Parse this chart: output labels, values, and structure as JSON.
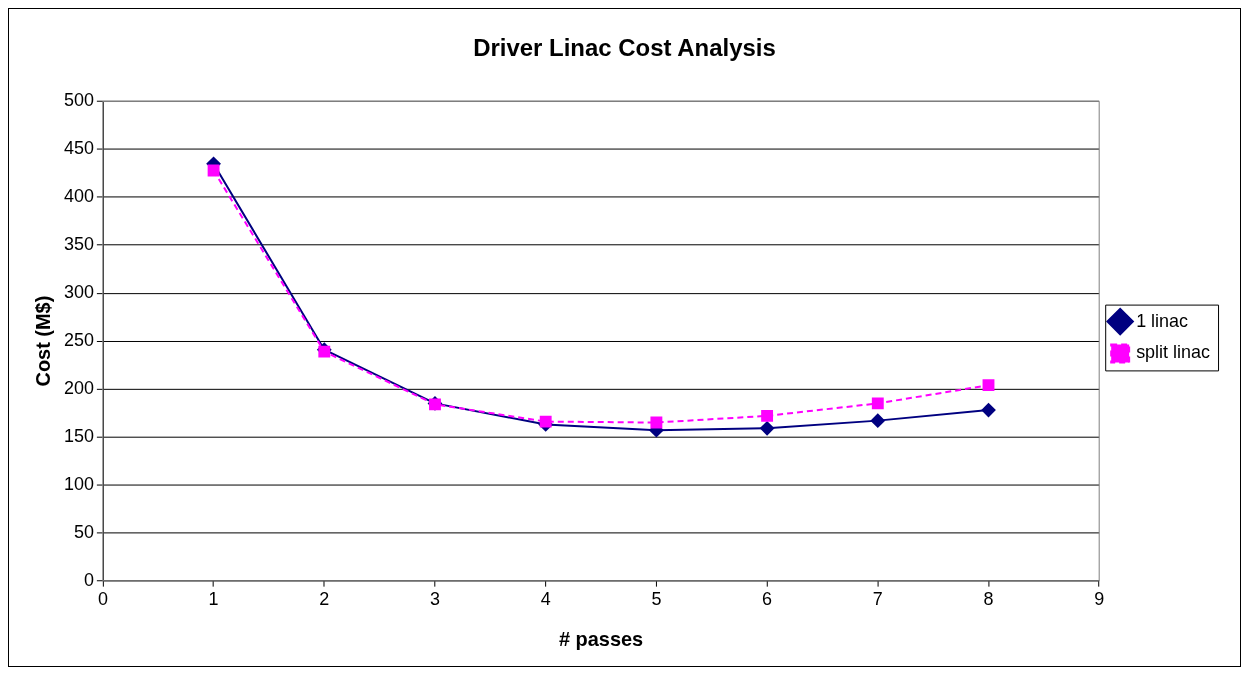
{
  "chart_data": {
    "type": "line",
    "title": "Driver Linac Cost Analysis",
    "xlabel": "# passes",
    "ylabel": "Cost (M$)",
    "x": [
      1,
      2,
      3,
      4,
      5,
      6,
      7,
      8
    ],
    "series": [
      {
        "name": "1 linac",
        "color": "#000080",
        "marker": "diamond",
        "line_style": "solid",
        "values": [
          435,
          241,
          185,
          163,
          157,
          159,
          167,
          178
        ]
      },
      {
        "name": "split linac",
        "color": "#ff00ff",
        "marker": "square",
        "line_style": "dashed",
        "values": [
          428,
          239,
          184,
          166,
          165,
          172,
          185,
          204
        ]
      }
    ],
    "xlim": [
      0,
      9
    ],
    "xticks": [
      0,
      1,
      2,
      3,
      4,
      5,
      6,
      7,
      8,
      9
    ],
    "ylim": [
      0,
      500
    ],
    "yticks": [
      0,
      50,
      100,
      150,
      200,
      250,
      300,
      350,
      400,
      450,
      500
    ],
    "grid": "y",
    "legend": "right"
  }
}
